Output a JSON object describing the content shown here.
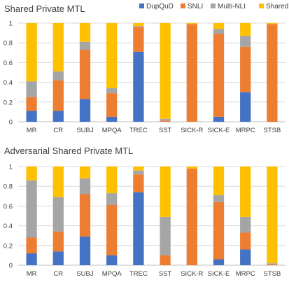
{
  "legend": {
    "items": [
      {
        "name": "DupQuD",
        "color": "#4472C4"
      },
      {
        "name": "SNLI",
        "color": "#ED7D31"
      },
      {
        "name": "Multi-NLI",
        "color": "#A5A5A5"
      },
      {
        "name": "Shared",
        "color": "#FFC000"
      }
    ]
  },
  "chart_data": [
    {
      "type": "bar",
      "stacked": true,
      "title": "Shared Private MTL",
      "categories": [
        "MR",
        "CR",
        "SUBJ",
        "MPQA",
        "TREC",
        "SST",
        "SICK-R",
        "SICK-E",
        "MRPC",
        "STSB"
      ],
      "ylim": [
        0,
        1
      ],
      "yticks": [
        "0",
        "0.2",
        "0.4",
        "0.6",
        "0.8",
        "1"
      ],
      "grid": true,
      "legend_position": "top-right",
      "series": [
        {
          "name": "DupQuD",
          "color": "#4472C4",
          "values": [
            0.11,
            0.11,
            0.23,
            0.05,
            0.71,
            0.0,
            0.0,
            0.05,
            0.3,
            0.0
          ]
        },
        {
          "name": "SNLI",
          "color": "#ED7D31",
          "values": [
            0.14,
            0.31,
            0.5,
            0.24,
            0.25,
            0.01,
            0.99,
            0.84,
            0.46,
            0.99
          ]
        },
        {
          "name": "Multi-NLI",
          "color": "#A5A5A5",
          "values": [
            0.16,
            0.09,
            0.08,
            0.05,
            0.01,
            0.02,
            0.0,
            0.05,
            0.11,
            0.0
          ]
        },
        {
          "name": "Shared",
          "color": "#FFC000",
          "values": [
            0.59,
            0.49,
            0.19,
            0.66,
            0.03,
            0.97,
            0.01,
            0.06,
            0.13,
            0.01
          ]
        }
      ]
    },
    {
      "type": "bar",
      "stacked": true,
      "title": "Adversarial Shared Private MTL",
      "categories": [
        "MR",
        "CR",
        "SUBJ",
        "MPQA",
        "TREC",
        "SST",
        "SICK-R",
        "SICK-E",
        "MRPC",
        "STSB"
      ],
      "ylim": [
        0,
        1
      ],
      "yticks": [
        "0",
        "0.2",
        "0.4",
        "0.6",
        "0.8",
        "1"
      ],
      "grid": true,
      "series": [
        {
          "name": "DupQuD",
          "color": "#4472C4",
          "values": [
            0.12,
            0.14,
            0.29,
            0.1,
            0.74,
            0.0,
            0.0,
            0.06,
            0.16,
            0.0
          ]
        },
        {
          "name": "SNLI",
          "color": "#ED7D31",
          "values": [
            0.16,
            0.2,
            0.43,
            0.51,
            0.18,
            0.1,
            0.98,
            0.58,
            0.17,
            0.01
          ]
        },
        {
          "name": "Multi-NLI",
          "color": "#A5A5A5",
          "values": [
            0.58,
            0.35,
            0.16,
            0.12,
            0.04,
            0.39,
            0.0,
            0.07,
            0.16,
            0.01
          ]
        },
        {
          "name": "Shared",
          "color": "#FFC000",
          "values": [
            0.14,
            0.31,
            0.12,
            0.27,
            0.04,
            0.51,
            0.02,
            0.29,
            0.51,
            0.98
          ]
        }
      ]
    }
  ]
}
